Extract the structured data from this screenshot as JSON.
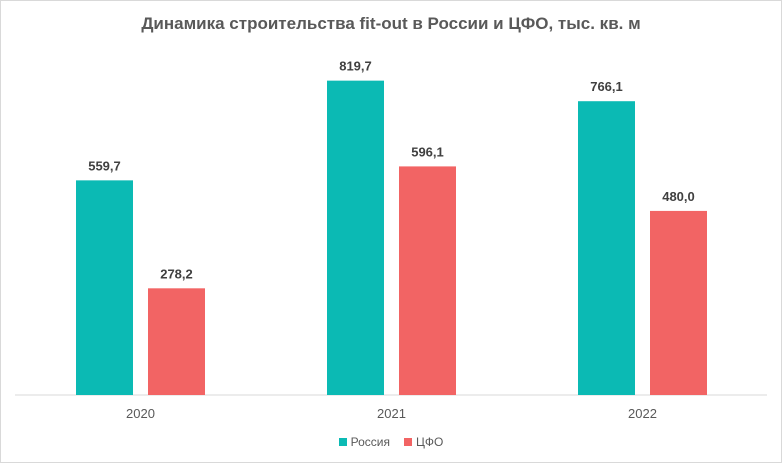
{
  "chart_data": {
    "type": "bar",
    "title": "Динамика строительства fit-out в России и ЦФО, тыс. кв. м",
    "categories": [
      "2020",
      "2021",
      "2022"
    ],
    "series": [
      {
        "name": "Россия",
        "values": [
          559.7,
          819.7,
          766.1
        ],
        "labels": [
          "559,7",
          "819,7",
          "766,1"
        ],
        "color": "#0bbab4"
      },
      {
        "name": "ЦФО",
        "values": [
          278.2,
          596.1,
          480.0
        ],
        "labels": [
          "278,2",
          "596,1",
          "480,0"
        ],
        "color": "#f26464"
      }
    ],
    "grid": false,
    "legend_position": "bottom"
  }
}
